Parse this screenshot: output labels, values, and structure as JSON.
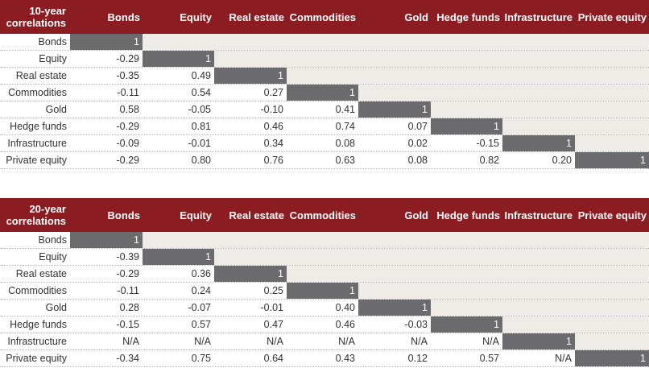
{
  "tables": [
    {
      "title": "10-year correlations",
      "columns": [
        "Bonds",
        "Equity",
        "Real estate",
        "Commodities",
        "Gold",
        "Hedge funds",
        "Infrastructure",
        "Private equity"
      ],
      "rows": [
        {
          "label": "Bonds",
          "values": [
            "1"
          ]
        },
        {
          "label": "Equity",
          "values": [
            "-0.29",
            "1"
          ]
        },
        {
          "label": "Real estate",
          "values": [
            "-0.35",
            "0.49",
            "1"
          ]
        },
        {
          "label": "Commodities",
          "values": [
            "-0.11",
            "0.54",
            "0.27",
            "1"
          ]
        },
        {
          "label": "Gold",
          "values": [
            "0.58",
            "-0.05",
            "-0.10",
            "0.41",
            "1"
          ]
        },
        {
          "label": "Hedge funds",
          "values": [
            "-0.29",
            "0.81",
            "0.46",
            "0.74",
            "0.07",
            "1"
          ]
        },
        {
          "label": "Infrastructure",
          "values": [
            "-0.09",
            "-0.01",
            "0.34",
            "0.08",
            "0.02",
            "-0.15",
            "1"
          ]
        },
        {
          "label": "Private equity",
          "values": [
            "-0.29",
            "0.80",
            "0.76",
            "0.63",
            "0.08",
            "0.82",
            "0.20",
            "1"
          ]
        }
      ]
    },
    {
      "title": "20-year correlations",
      "columns": [
        "Bonds",
        "Equity",
        "Real estate",
        "Commodities",
        "Gold",
        "Hedge funds",
        "Infrastructure",
        "Private equity"
      ],
      "rows": [
        {
          "label": "Bonds",
          "values": [
            "1"
          ]
        },
        {
          "label": "Equity",
          "values": [
            "-0.39",
            "1"
          ]
        },
        {
          "label": "Real estate",
          "values": [
            "-0.29",
            "0.36",
            "1"
          ]
        },
        {
          "label": "Commodities",
          "values": [
            "-0.11",
            "0.24",
            "0.25",
            "1"
          ]
        },
        {
          "label": "Gold",
          "values": [
            "0.28",
            "-0.07",
            "-0.01",
            "0.40",
            "1"
          ]
        },
        {
          "label": "Hedge funds",
          "values": [
            "-0.15",
            "0.57",
            "0.47",
            "0.46",
            "-0.03",
            "1"
          ]
        },
        {
          "label": "Infrastructure",
          "values": [
            "N/A",
            "N/A",
            "N/A",
            "N/A",
            "N/A",
            "N/A",
            "1"
          ]
        },
        {
          "label": "Private equity",
          "values": [
            "-0.34",
            "0.75",
            "0.64",
            "0.43",
            "0.12",
            "0.57",
            "N/A",
            "1"
          ]
        }
      ]
    }
  ],
  "colors": {
    "header_bg": "#8a1c22",
    "diagonal_bg": "#6b6a6d",
    "empty_bg": "#efece8"
  }
}
